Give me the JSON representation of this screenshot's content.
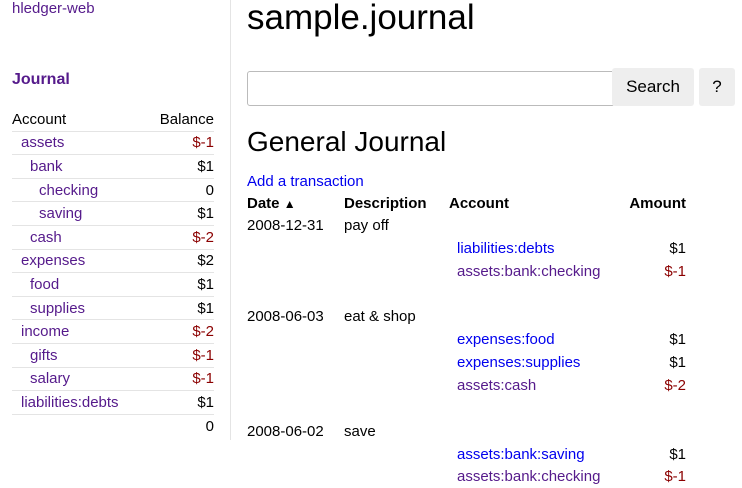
{
  "sidebar": {
    "brand": "hledger-web",
    "journal_link": "Journal",
    "header": {
      "account": "Account",
      "balance": "Balance"
    },
    "accounts": [
      {
        "name": "assets",
        "balance": "$-1",
        "depth": 1,
        "neg": true
      },
      {
        "name": "bank",
        "balance": "$1",
        "depth": 2,
        "neg": false
      },
      {
        "name": "checking",
        "balance": "0",
        "depth": 3,
        "neg": false
      },
      {
        "name": "saving",
        "balance": "$1",
        "depth": 3,
        "neg": false
      },
      {
        "name": "cash",
        "balance": "$-2",
        "depth": 2,
        "neg": true
      },
      {
        "name": "expenses",
        "balance": "$2",
        "depth": 1,
        "neg": false
      },
      {
        "name": "food",
        "balance": "$1",
        "depth": 2,
        "neg": false
      },
      {
        "name": "supplies",
        "balance": "$1",
        "depth": 2,
        "neg": false
      },
      {
        "name": "income",
        "balance": "$-2",
        "depth": 1,
        "neg": true
      },
      {
        "name": "gifts",
        "balance": "$-1",
        "depth": 2,
        "neg": true
      },
      {
        "name": "salary",
        "balance": "$-1",
        "depth": 2,
        "neg": true
      },
      {
        "name": "liabilities:debts",
        "balance": "$1",
        "depth": 1,
        "neg": false
      }
    ],
    "total": "0"
  },
  "main": {
    "title": "sample.journal",
    "search": {
      "value": "",
      "placeholder": "",
      "button": "Search",
      "help": "?"
    },
    "heading": "General Journal",
    "add_link": "Add a transaction",
    "columns": {
      "date": "Date",
      "sort_icon": "chevron-up-icon",
      "description": "Description",
      "account": "Account",
      "amount": "Amount"
    },
    "transactions": [
      {
        "date": "2008-12-31",
        "description": "pay off",
        "postings": [
          {
            "account": "liabilities:debts",
            "amount": "$1",
            "neg": false,
            "visited": false
          },
          {
            "account": "assets:bank:checking",
            "amount": "$-1",
            "neg": true,
            "visited": true
          }
        ]
      },
      {
        "date": "2008-06-03",
        "description": "eat & shop",
        "postings": [
          {
            "account": "expenses:food",
            "amount": "$1",
            "neg": false,
            "visited": false
          },
          {
            "account": "expenses:supplies",
            "amount": "$1",
            "neg": false,
            "visited": false
          },
          {
            "account": "assets:cash",
            "amount": "$-2",
            "neg": true,
            "visited": true
          }
        ]
      },
      {
        "date": "2008-06-02",
        "description": "save",
        "postings": [
          {
            "account": "assets:bank:saving",
            "amount": "$1",
            "neg": false,
            "visited": false
          },
          {
            "account": "assets:bank:checking",
            "amount": "$-1",
            "neg": true,
            "visited": true
          }
        ]
      }
    ]
  },
  "colors": {
    "link": "#0000ee",
    "visited": "#551a8b",
    "negative": "#8b0000"
  }
}
